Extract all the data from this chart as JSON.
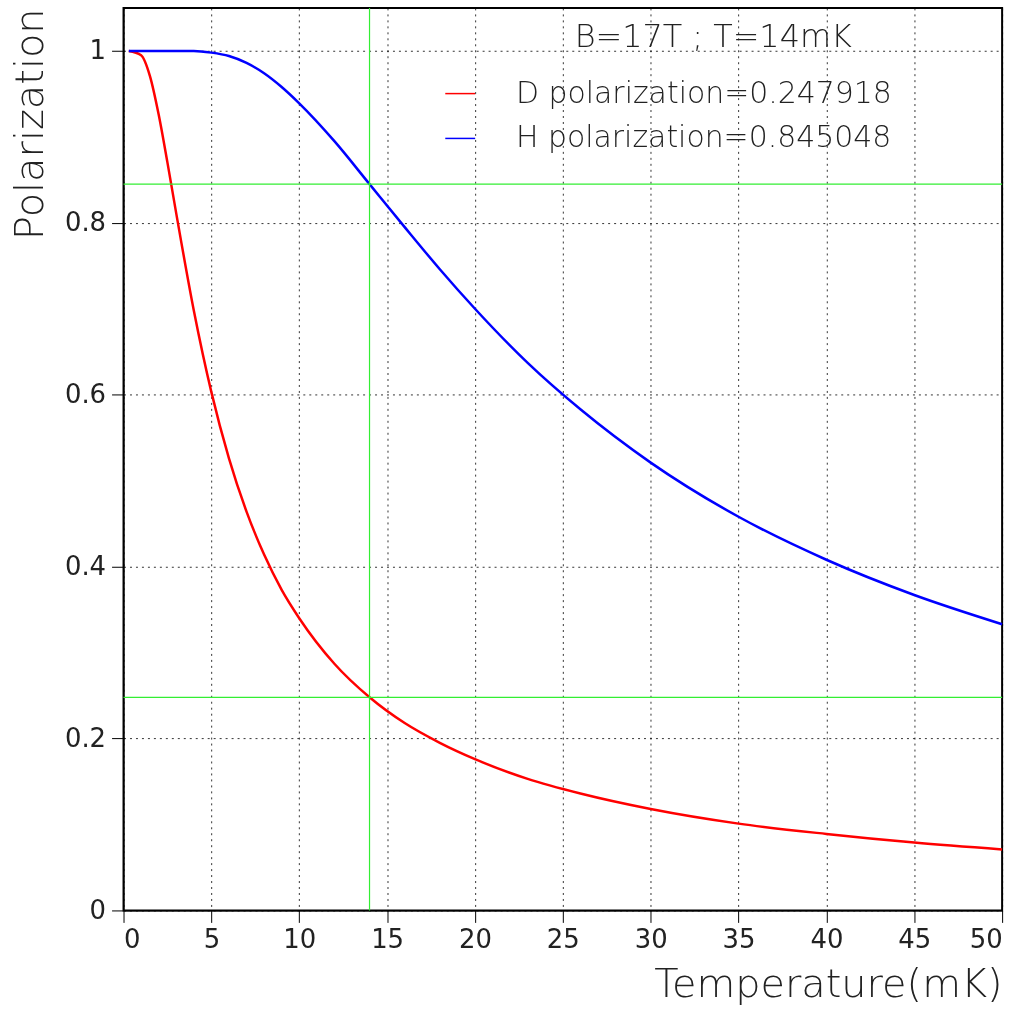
{
  "chart_data": {
    "type": "line",
    "title": "B=17T ;  T=14mK",
    "xlabel": "Temperature(mK)",
    "ylabel": "Polarization",
    "x": [
      0.3,
      1,
      1.5,
      2,
      2.5,
      3,
      4,
      5,
      6,
      7,
      8,
      9,
      10,
      12,
      14,
      16,
      18,
      20,
      23,
      26,
      30,
      35,
      40,
      45,
      50
    ],
    "series": [
      {
        "name": "D polarization=0.247918",
        "color": "#ff0000",
        "values": [
          1.0,
          0.995,
          0.971,
          0.926,
          0.87,
          0.811,
          0.698,
          0.603,
          0.526,
          0.464,
          0.414,
          0.373,
          0.34,
          0.287,
          0.248,
          0.218,
          0.195,
          0.176,
          0.153,
          0.136,
          0.118,
          0.101,
          0.089,
          0.079,
          0.071
        ]
      },
      {
        "name": "H polarization=0.845048",
        "color": "#0000ff",
        "values": [
          1.0,
          1.0,
          1.0,
          1.0,
          1.0,
          1.0,
          1.0,
          0.998,
          0.994,
          0.986,
          0.974,
          0.958,
          0.939,
          0.895,
          0.845,
          0.795,
          0.746,
          0.7,
          0.637,
          0.583,
          0.521,
          0.458,
          0.408,
          0.367,
          0.333
        ]
      }
    ],
    "xlim": [
      0,
      50
    ],
    "ylim": [
      0,
      1.05
    ],
    "xticks": [
      0,
      5,
      10,
      15,
      20,
      25,
      30,
      35,
      40,
      45,
      50
    ],
    "yticks": [
      0,
      0.2,
      0.4,
      0.6,
      0.8,
      1
    ],
    "ref_lines": [
      {
        "axis": "x",
        "value": 14,
        "color": "#33ee33"
      },
      {
        "axis": "y",
        "value": 0.845048,
        "color": "#33ee33"
      },
      {
        "axis": "y",
        "value": 0.247918,
        "color": "#33ee33"
      }
    ],
    "grid": true,
    "legend": "top right",
    "marker": "none",
    "line_style": "solid"
  }
}
